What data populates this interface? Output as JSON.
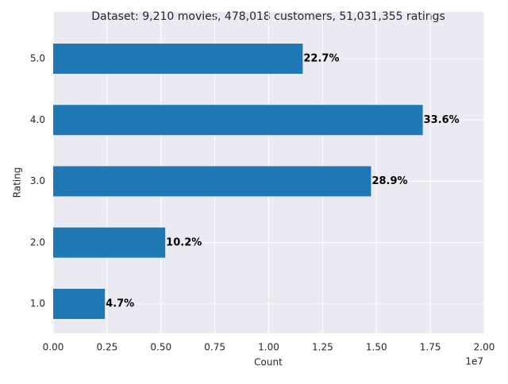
{
  "chart_data": {
    "type": "barh",
    "title": "Dataset: 9,210 movies, 478,018 customers, 51,031,355 ratings",
    "xlabel": "Count",
    "ylabel": "Rating",
    "x_offset_label": "1e7",
    "categories": [
      "1.0",
      "2.0",
      "3.0",
      "4.0",
      "5.0"
    ],
    "values": [
      2400000,
      5200000,
      14750000,
      17150000,
      11580000
    ],
    "value_labels": [
      "4.7%",
      "10.2%",
      "28.9%",
      "33.6%",
      "22.7%"
    ],
    "color": "#1f77b4",
    "xlim": [
      0,
      20000000
    ],
    "xticks": [
      {
        "value": 0,
        "label": "0.00"
      },
      {
        "value": 2500000,
        "label": "0.25"
      },
      {
        "value": 5000000,
        "label": "0.50"
      },
      {
        "value": 7500000,
        "label": "0.75"
      },
      {
        "value": 10000000,
        "label": "1.00"
      },
      {
        "value": 12500000,
        "label": "1.25"
      },
      {
        "value": 15000000,
        "label": "1.50"
      },
      {
        "value": 17500000,
        "label": "1.75"
      },
      {
        "value": 20000000,
        "label": "2.00"
      }
    ],
    "grid": true
  }
}
